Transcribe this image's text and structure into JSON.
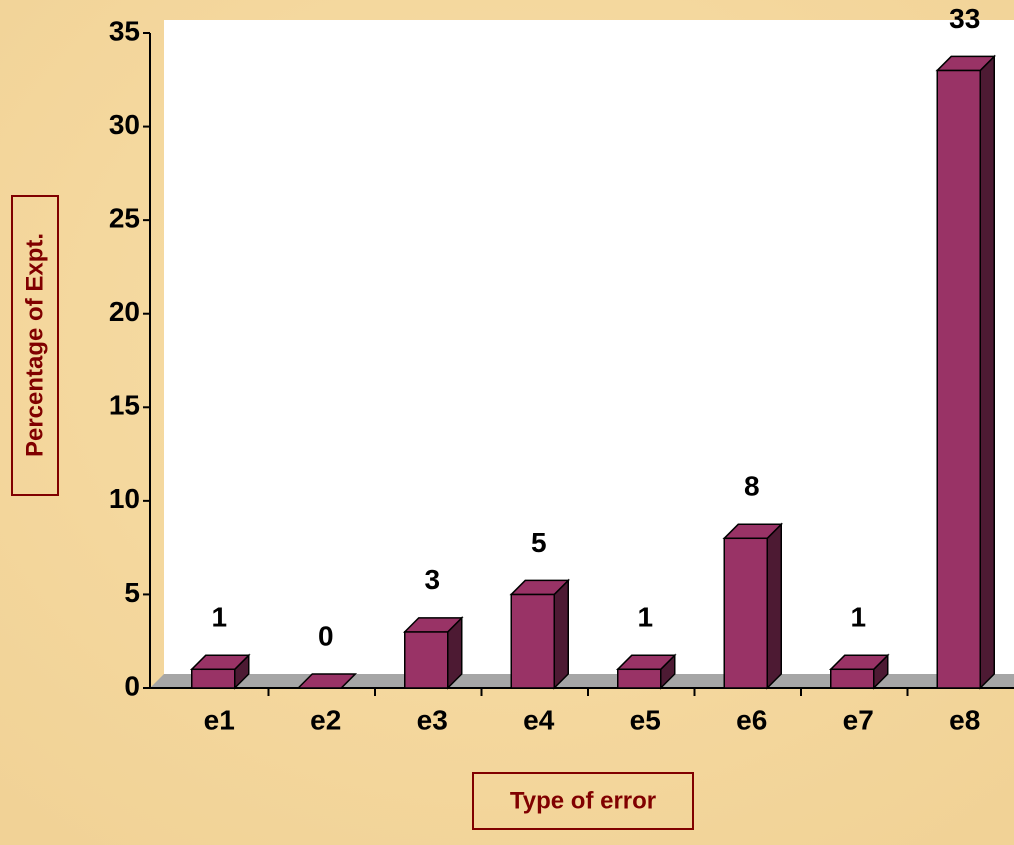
{
  "chart_data": {
    "type": "bar3d",
    "x_label": "Type of error",
    "y_label": "Percentage of Expt.",
    "categories": [
      "e1",
      "e2",
      "e3",
      "e4",
      "e5",
      "e6",
      "e7",
      "e8"
    ],
    "values": [
      1,
      0,
      3,
      5,
      1,
      8,
      1,
      33
    ],
    "color": "#993366",
    "ylim": [
      0,
      35
    ],
    "yticks": [
      0,
      5,
      10,
      15,
      20,
      25,
      30,
      35
    ],
    "data_labels": true
  }
}
